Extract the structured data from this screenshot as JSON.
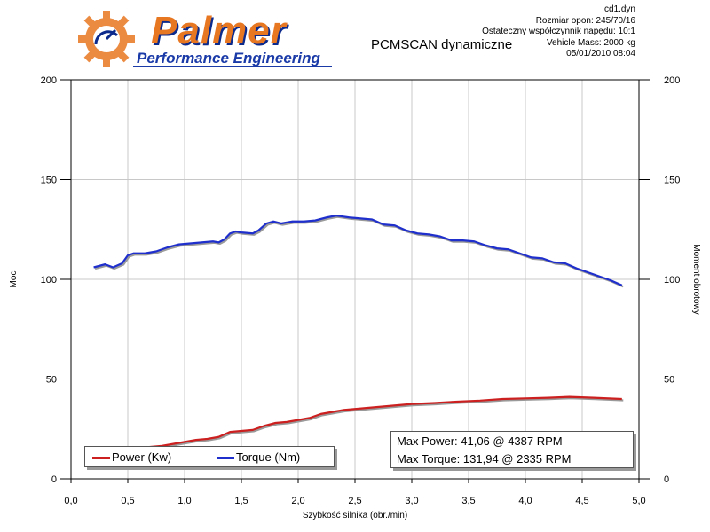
{
  "header": {
    "logo_title": "Palmer",
    "logo_subtitle": "Performance Engineering",
    "program_title": "PCMSCAN dynamiczne",
    "info_lines": [
      "cd1.dyn",
      "Rozmiar opon: 245/70/16",
      "Ostateczny współczynnik napędu: 10:1",
      "Vehicle Mass: 2000 kg",
      "05/01/2010 08:04"
    ]
  },
  "max_box": {
    "power": "Max Power: 41,06 @ 4387 RPM",
    "torque": "Max Torque: 131,94 @ 2335 RPM"
  },
  "colors": {
    "power": "#cc1f1f",
    "torque": "#1f2fcc",
    "grid": "#c8c8c8"
  },
  "chart_data": {
    "type": "line",
    "xlabel": "Szybkość silnika (obr./min)",
    "ylabel": "Moc",
    "ylabel_right": "Moment obrotowy",
    "xlim": [
      0,
      5
    ],
    "ylim": [
      0,
      200
    ],
    "x_ticks": [
      "0,0",
      "0,5",
      "1,0",
      "1,5",
      "2,0",
      "2,5",
      "3,0",
      "3,5",
      "4,0",
      "4,5",
      "5,0"
    ],
    "y_ticks": [
      "0",
      "50",
      "100",
      "150",
      "200"
    ],
    "grid": true,
    "legend_position": "bottom-left",
    "series": [
      {
        "name": "Power (Kw)",
        "color": "#cc1f1f",
        "x": [
          0.2,
          0.3,
          0.4,
          0.5,
          0.6,
          0.7,
          0.8,
          0.9,
          1.0,
          1.1,
          1.2,
          1.3,
          1.4,
          1.5,
          1.6,
          1.7,
          1.8,
          1.9,
          2.0,
          2.1,
          2.2,
          2.3,
          2.4,
          2.5,
          2.6,
          2.7,
          2.8,
          2.9,
          3.0,
          3.2,
          3.4,
          3.6,
          3.8,
          4.0,
          4.2,
          4.387,
          4.6,
          4.85
        ],
        "values": [
          11.5,
          12.5,
          13,
          14.5,
          15.5,
          16,
          16.5,
          17.5,
          18.5,
          19.5,
          20,
          21,
          23.5,
          24,
          24.5,
          26.5,
          28,
          28.5,
          29.5,
          30.5,
          32.5,
          33.5,
          34.5,
          35,
          35.5,
          36,
          36.5,
          37,
          37.5,
          38,
          38.7,
          39.2,
          40,
          40.3,
          40.6,
          41.06,
          40.6,
          40
        ]
      },
      {
        "name": "Torque (Nm)",
        "color": "#1f2fcc",
        "x": [
          0.2,
          0.3,
          0.37,
          0.45,
          0.5,
          0.55,
          0.65,
          0.75,
          0.85,
          0.95,
          1.05,
          1.15,
          1.25,
          1.3,
          1.35,
          1.4,
          1.45,
          1.5,
          1.6,
          1.65,
          1.72,
          1.78,
          1.85,
          1.95,
          2.05,
          2.15,
          2.25,
          2.335,
          2.45,
          2.55,
          2.65,
          2.75,
          2.85,
          2.95,
          3.05,
          3.15,
          3.25,
          3.35,
          3.45,
          3.55,
          3.65,
          3.75,
          3.85,
          3.95,
          4.05,
          4.15,
          4.25,
          4.35,
          4.45,
          4.55,
          4.65,
          4.75,
          4.85
        ],
        "values": [
          106,
          107.5,
          106,
          108,
          112,
          113,
          113,
          114,
          116,
          117.5,
          118,
          118.5,
          119,
          118.5,
          120,
          123,
          124,
          123.5,
          123,
          124.5,
          128,
          129,
          128,
          129,
          129,
          129.5,
          131,
          131.94,
          131,
          130.5,
          130,
          127.5,
          127,
          124.5,
          123,
          122.5,
          121.5,
          119.5,
          119.5,
          119,
          117,
          115.5,
          115,
          113,
          111,
          110.5,
          108.5,
          108,
          105.5,
          103.5,
          101.5,
          99.5,
          97
        ]
      }
    ]
  }
}
